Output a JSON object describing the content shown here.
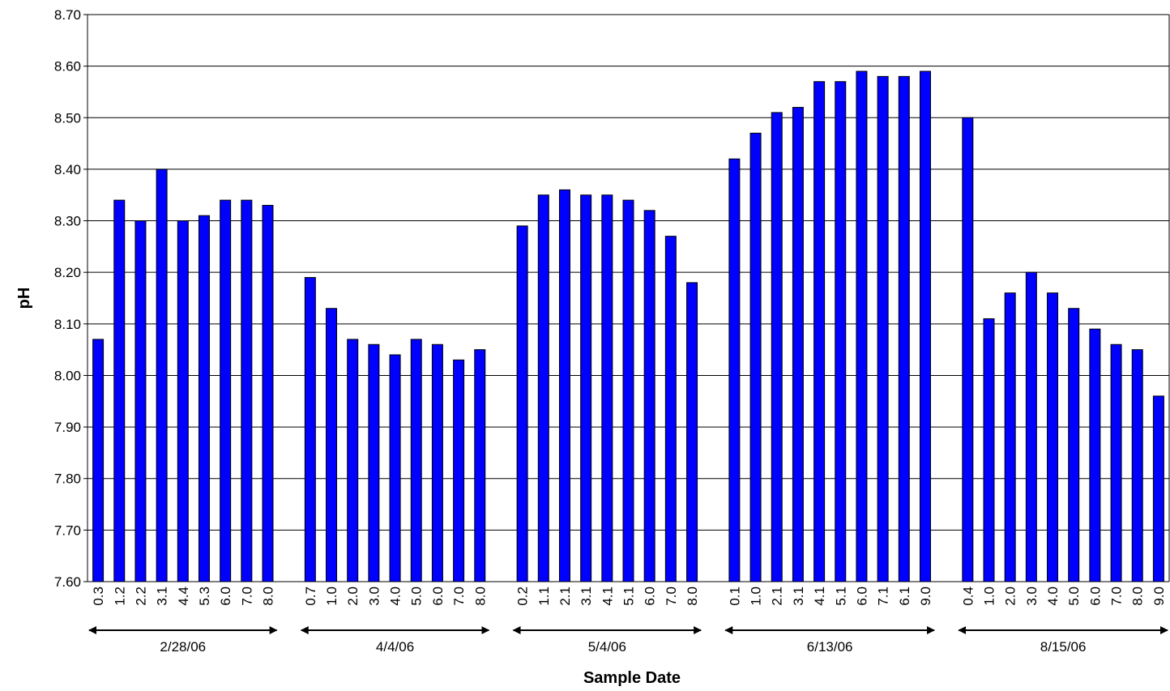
{
  "chart_data": {
    "type": "bar",
    "x_label": "Sample Date",
    "y_label": "pH",
    "color": "#0000ff",
    "ylim": [
      7.6,
      8.7
    ],
    "yticks": [
      {
        "value": 7.6,
        "label": "7.60"
      },
      {
        "value": 7.7,
        "label": "7.70"
      },
      {
        "value": 7.8,
        "label": "7.80"
      },
      {
        "value": 7.9,
        "label": "7.90"
      },
      {
        "value": 8.0,
        "label": "8.00"
      },
      {
        "value": 8.1,
        "label": "8.10"
      },
      {
        "value": 8.2,
        "label": "8.20"
      },
      {
        "value": 8.3,
        "label": "8.30"
      },
      {
        "value": 8.4,
        "label": "8.40"
      },
      {
        "value": 8.5,
        "label": "8.50"
      },
      {
        "value": 8.6,
        "label": "8.60"
      },
      {
        "value": 8.7,
        "label": "8.70"
      }
    ],
    "grid": true,
    "groups": [
      {
        "name": "2/28/06",
        "categories": [
          "0.3",
          "1.2",
          "2.2",
          "3.1",
          "4.4",
          "5.3",
          "6.0",
          "7.0",
          "8.0"
        ],
        "values": [
          8.07,
          8.34,
          8.3,
          8.4,
          8.3,
          8.31,
          8.34,
          8.34,
          8.33
        ]
      },
      {
        "name": "4/4/06",
        "categories": [
          "0.7",
          "1.0",
          "2.0",
          "3.0",
          "4.0",
          "5.0",
          "6.0",
          "7.0",
          "8.0"
        ],
        "values": [
          8.19,
          8.13,
          8.07,
          8.06,
          8.04,
          8.07,
          8.06,
          8.03,
          8.05
        ]
      },
      {
        "name": "5/4/06",
        "categories": [
          "0.2",
          "1.1",
          "2.1",
          "3.1",
          "4.1",
          "5.1",
          "6.0",
          "7.0",
          "8.0"
        ],
        "values": [
          8.29,
          8.35,
          8.36,
          8.35,
          8.35,
          8.34,
          8.32,
          8.27,
          8.18
        ]
      },
      {
        "name": "6/13/06",
        "categories": [
          "0.1",
          "1.0",
          "2.1",
          "3.1",
          "4.1",
          "5.1",
          "6.0",
          "7.1",
          "6.1",
          "9.0"
        ],
        "values": [
          8.42,
          8.47,
          8.51,
          8.52,
          8.57,
          8.57,
          8.59,
          8.58,
          8.58,
          8.59
        ]
      },
      {
        "name": "8/15/06",
        "categories": [
          "0.4",
          "1.0",
          "2.0",
          "3.0",
          "4.0",
          "5.0",
          "6.0",
          "7.0",
          "8.0",
          "9.0"
        ],
        "values": [
          8.5,
          8.11,
          8.16,
          8.2,
          8.16,
          8.13,
          8.09,
          8.06,
          8.05,
          7.96
        ]
      }
    ]
  }
}
